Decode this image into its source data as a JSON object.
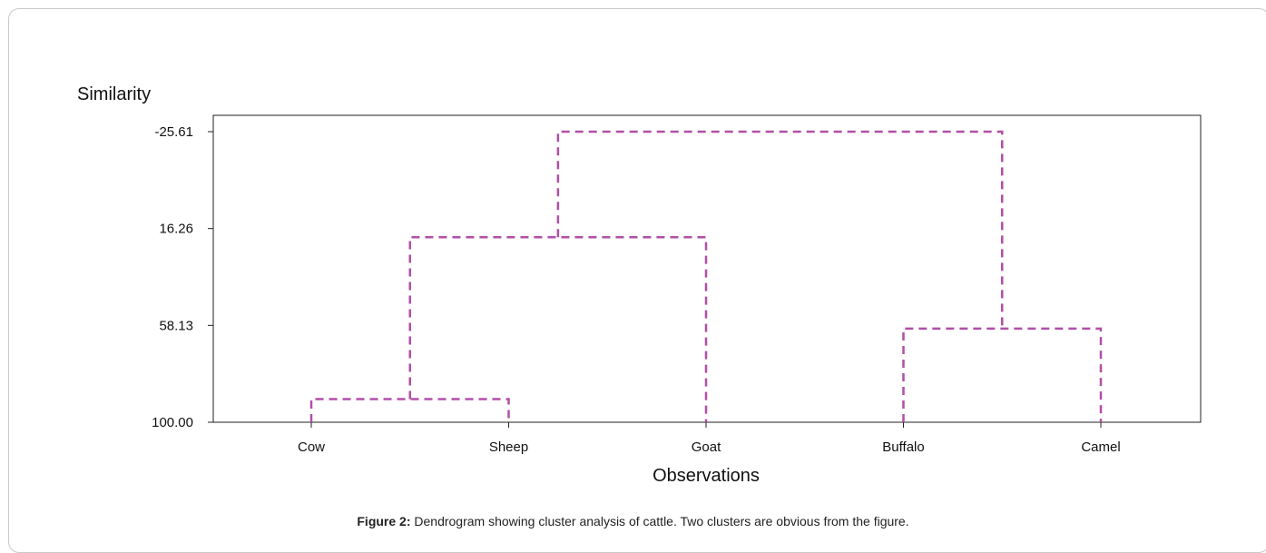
{
  "chart_data": {
    "type": "dendrogram",
    "ylabel": "Similarity",
    "xlabel": "Observations",
    "y_ticks": [
      "-25.61",
      "16.26",
      "58.13",
      "100.00"
    ],
    "ylim": [
      100.0,
      -25.61
    ],
    "grid": false,
    "line_color": "#b24fa6",
    "line_style": "dashed",
    "leaves": [
      "Cow",
      "Sheep",
      "Goat",
      "Buffalo",
      "Camel"
    ],
    "merges": [
      {
        "left": "Cow",
        "right": "Sheep",
        "similarity": 90
      },
      {
        "left": "Buffalo",
        "right": "Camel",
        "similarity": 59.5
      },
      {
        "left": "Cow+Sheep",
        "right": "Goat",
        "similarity": 20
      },
      {
        "left": "Cow+Sheep+Goat",
        "right": "Buffalo+Camel",
        "similarity": -25.61
      }
    ]
  },
  "caption": {
    "label": "Figure 2:",
    "text": " Dendrogram showing cluster analysis of cattle. Two clusters are obvious from the figure."
  }
}
